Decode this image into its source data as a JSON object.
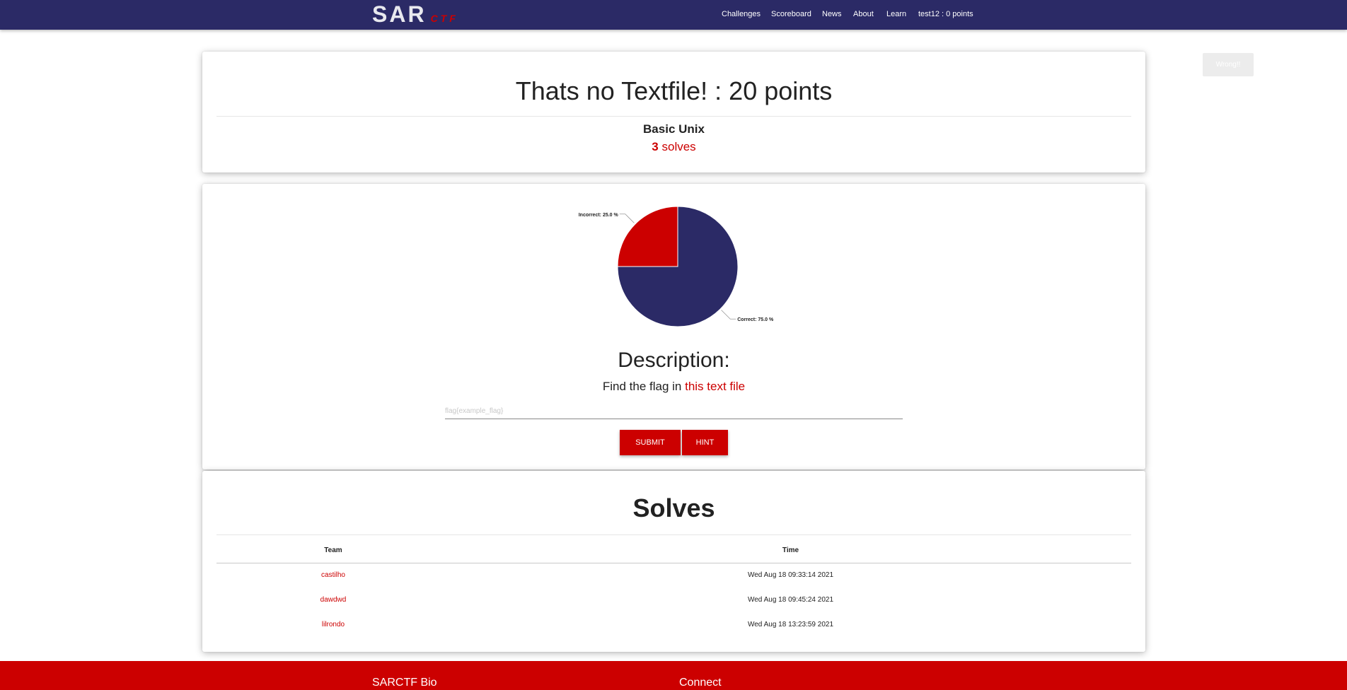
{
  "nav": {
    "logo_main": "SAR",
    "logo_sub": "CTF",
    "links": [
      "Challenges",
      "Scoreboard",
      "News",
      "About",
      "Learn",
      "test12 : 0 points"
    ]
  },
  "toast": "Wrong!!",
  "challenge": {
    "title": "Thats no Textfile! : 20 points",
    "category": "Basic Unix",
    "solve_count": "3",
    "solve_suffix": " solves"
  },
  "chart_data": {
    "type": "pie",
    "labels": [
      "Correct",
      "Incorrect"
    ],
    "values": [
      75.0,
      25.0
    ],
    "colors": [
      "#2b2a66",
      "#cc0000"
    ],
    "label_texts": [
      "Correct: 75.0 %",
      "Incorrect: 25.0 %"
    ]
  },
  "description": {
    "heading": "Description:",
    "prefix": "Find the flag in ",
    "link_text": "this text file"
  },
  "flag_form": {
    "placeholder": "flag{example_flag}",
    "submit_label": "SUBMIT",
    "hint_label": "HINT"
  },
  "solves_section": {
    "title": "Solves",
    "headers": [
      "Team",
      "Time"
    ],
    "rows": [
      {
        "team": "castilho",
        "time": "Wed Aug 18 09:33:14 2021"
      },
      {
        "team": "dawdwd",
        "time": "Wed Aug 18 09:45:24 2021"
      },
      {
        "team": "lilrondo",
        "time": "Wed Aug 18 13:23:59 2021"
      }
    ]
  },
  "footer": {
    "bio_heading": "SARCTF Bio",
    "connect_heading": "Connect"
  }
}
